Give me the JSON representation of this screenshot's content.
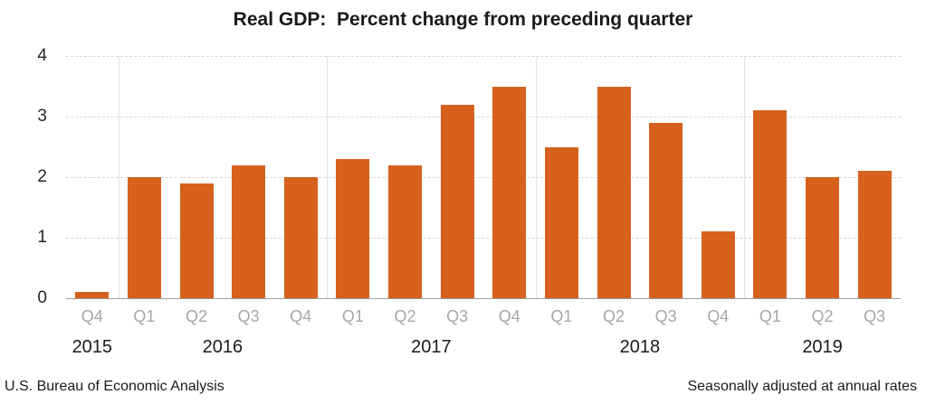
{
  "chart_data": {
    "type": "bar",
    "title": "Real GDP:  Percent change from preceding quarter",
    "xlabel": "",
    "ylabel": "",
    "ylim": [
      0,
      4
    ],
    "yticks": [
      0,
      1,
      2,
      3,
      4
    ],
    "grid": "horizontal-dashed",
    "legend": "none",
    "bar_color": "#d6611c",
    "quarter_label_color": "#a6a6a6",
    "year_label_color": "#1a1a1a",
    "categories": [
      "2015 Q4",
      "2016 Q1",
      "2016 Q2",
      "2016 Q3",
      "2016 Q4",
      "2017 Q1",
      "2017 Q2",
      "2017 Q3",
      "2017 Q4",
      "2018 Q1",
      "2018 Q2",
      "2018 Q3",
      "2018 Q4",
      "2019 Q1",
      "2019 Q2",
      "2019 Q3"
    ],
    "values": [
      0.1,
      2.0,
      1.9,
      2.2,
      2.0,
      2.3,
      2.2,
      3.2,
      3.5,
      2.5,
      3.5,
      2.9,
      1.1,
      3.1,
      2.0,
      2.1
    ],
    "groups": [
      {
        "year": "2015",
        "quarters": [
          "Q4"
        ],
        "values": [
          0.1
        ]
      },
      {
        "year": "2016",
        "quarters": [
          "Q1",
          "Q2",
          "Q3",
          "Q4"
        ],
        "values": [
          2.0,
          1.9,
          2.2,
          2.0
        ]
      },
      {
        "year": "2017",
        "quarters": [
          "Q1",
          "Q2",
          "Q3",
          "Q4"
        ],
        "values": [
          2.3,
          2.2,
          3.2,
          3.5
        ]
      },
      {
        "year": "2018",
        "quarters": [
          "Q1",
          "Q2",
          "Q3",
          "Q4"
        ],
        "values": [
          2.5,
          3.5,
          2.9,
          1.1
        ]
      },
      {
        "year": "2019",
        "quarters": [
          "Q1",
          "Q2",
          "Q3"
        ],
        "values": [
          3.1,
          2.0,
          2.1
        ]
      }
    ]
  },
  "footer": {
    "left": "U.S. Bureau of Economic Analysis",
    "right": "Seasonally adjusted at annual rates"
  }
}
